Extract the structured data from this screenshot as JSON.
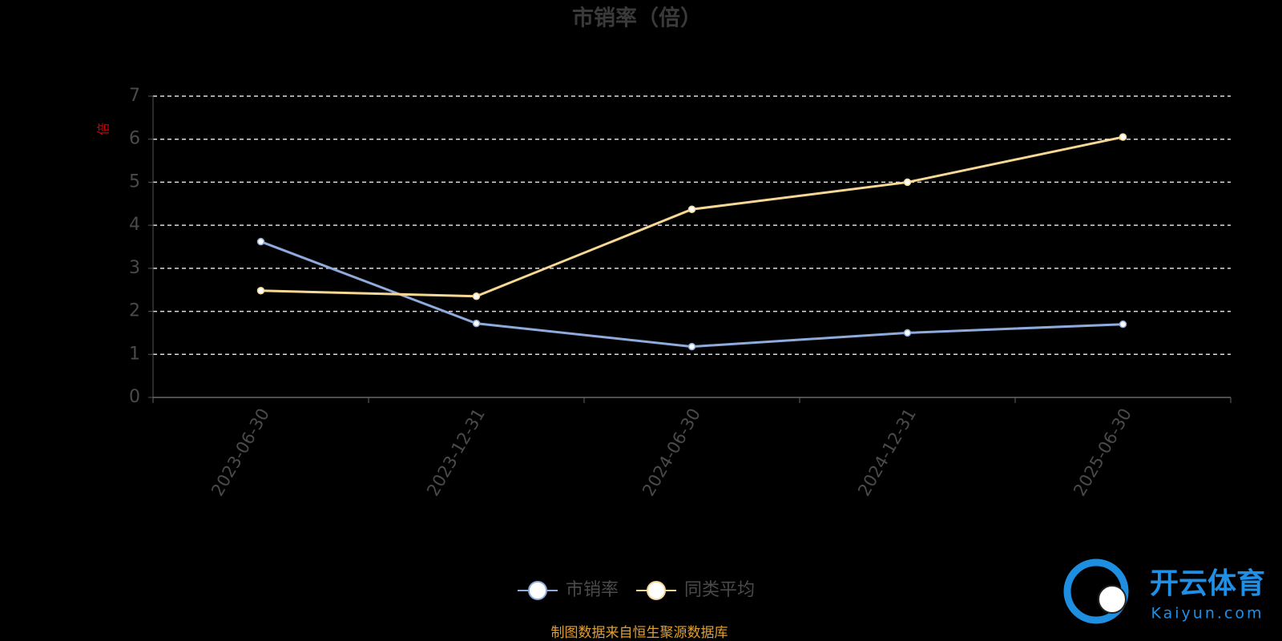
{
  "chart_data": {
    "type": "line",
    "title": "市销率（倍）",
    "y_label": "倍",
    "categories": [
      "2023-06-30",
      "2023-12-31",
      "2024-06-30",
      "2024-12-31",
      "2025-06-30"
    ],
    "series": [
      {
        "name": "市销率",
        "color": "#8faadc",
        "values": [
          3.62,
          1.72,
          1.18,
          1.5,
          1.7
        ]
      },
      {
        "name": "同类平均",
        "color": "#f7d794",
        "values": [
          2.48,
          2.35,
          4.37,
          5.0,
          6.05
        ]
      }
    ],
    "ylim": [
      0,
      7
    ],
    "yticks": [
      0,
      1,
      2,
      3,
      4,
      5,
      6,
      7
    ],
    "grid": true,
    "legend": "bottom",
    "source": "制图数据来自恒生聚源数据库"
  },
  "watermark": {
    "name": "开云体育",
    "site": "Kaiyun.com"
  }
}
